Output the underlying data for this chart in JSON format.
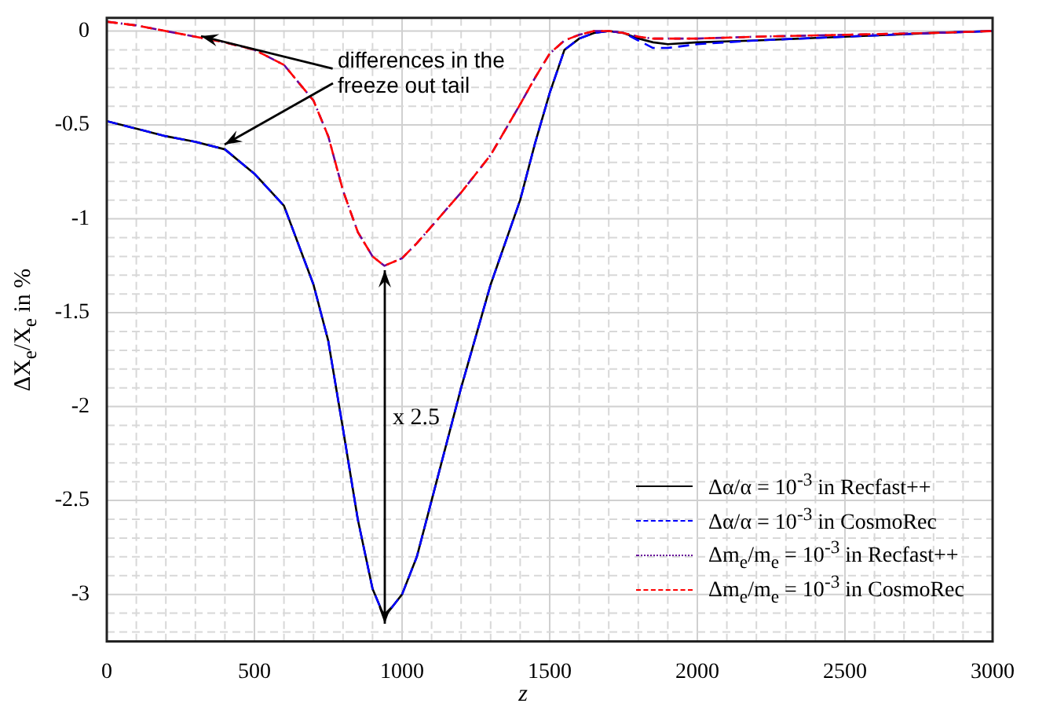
{
  "chart_data": {
    "type": "line",
    "xlabel": "z",
    "ylabel": "ΔX$_{e}$/X$_{e}$ in  %",
    "x": [
      0,
      100,
      200,
      300,
      400,
      500,
      600,
      700,
      750,
      800,
      850,
      900,
      940,
      1000,
      1050,
      1100,
      1200,
      1300,
      1400,
      1450,
      1500,
      1550,
      1600,
      1650,
      1700,
      1750,
      1800,
      1850,
      1900,
      2000,
      2200,
      2500,
      2800,
      3000
    ],
    "series": [
      {
        "name": "Δα/α = 10$^{-3}$ in Recfast++",
        "color": "#000000",
        "line_style": "solid",
        "values": [
          -0.48,
          -0.52,
          -0.56,
          -0.59,
          -0.63,
          -0.76,
          -0.93,
          -1.35,
          -1.65,
          -2.12,
          -2.6,
          -2.97,
          -3.12,
          -3.0,
          -2.8,
          -2.5,
          -1.9,
          -1.35,
          -0.9,
          -0.6,
          -0.33,
          -0.1,
          -0.04,
          -0.01,
          0,
          -0.01,
          -0.04,
          -0.06,
          -0.07,
          -0.06,
          -0.05,
          -0.03,
          -0.01,
          0
        ]
      },
      {
        "name": "Δα/α = 10$^{-3}$ in CosmoRec",
        "color": "#0000ff",
        "line_style": "dashed",
        "values": [
          -0.48,
          -0.52,
          -0.56,
          -0.59,
          -0.63,
          -0.76,
          -0.93,
          -1.35,
          -1.65,
          -2.12,
          -2.6,
          -2.97,
          -3.12,
          -3.0,
          -2.8,
          -2.5,
          -1.9,
          -1.35,
          -0.9,
          -0.6,
          -0.33,
          -0.1,
          -0.04,
          -0.01,
          0,
          -0.01,
          -0.05,
          -0.09,
          -0.09,
          -0.07,
          -0.05,
          -0.03,
          -0.01,
          0
        ]
      },
      {
        "name": "Δm$_{e}$/m$_{e}$ = 10$^{-3}$ in Recfast++",
        "color": "#660099",
        "line_style": "dotted",
        "values": [
          0.05,
          0.03,
          0.0,
          -0.03,
          -0.06,
          -0.1,
          -0.18,
          -0.37,
          -0.56,
          -0.85,
          -1.07,
          -1.2,
          -1.25,
          -1.21,
          -1.13,
          -1.04,
          -0.86,
          -0.66,
          -0.39,
          -0.25,
          -0.12,
          -0.05,
          -0.02,
          0,
          0,
          -0.01,
          -0.03,
          -0.04,
          -0.04,
          -0.04,
          -0.03,
          -0.02,
          -0.01,
          0
        ]
      },
      {
        "name": "Δm$_{e}$/m$_{e}$ = 10$^{-3}$ in CosmoRec",
        "color": "#ff0000",
        "line_style": "dashed",
        "values": [
          0.05,
          0.03,
          0.0,
          -0.03,
          -0.06,
          -0.1,
          -0.18,
          -0.37,
          -0.56,
          -0.85,
          -1.07,
          -1.2,
          -1.25,
          -1.21,
          -1.13,
          -1.04,
          -0.86,
          -0.66,
          -0.39,
          -0.25,
          -0.12,
          -0.05,
          -0.02,
          0,
          0,
          -0.01,
          -0.03,
          -0.04,
          -0.04,
          -0.04,
          -0.03,
          -0.02,
          -0.01,
          0
        ]
      }
    ],
    "xlim": [
      0,
      3000
    ],
    "xticks": [
      0,
      {
        "value": 100,
        "label": null
      },
      {
        "value": 200,
        "label": null
      },
      {
        "value": 300,
        "label": null
      },
      {
        "value": 400,
        "label": null
      },
      500,
      {
        "value": 600,
        "label": null
      },
      {
        "value": 700,
        "label": null
      },
      {
        "value": 800,
        "label": null
      },
      {
        "value": 900,
        "label": null
      },
      1000,
      {
        "value": 1100,
        "label": null
      },
      {
        "value": 1200,
        "label": null
      },
      {
        "value": 1300,
        "label": null
      },
      {
        "value": 1400,
        "label": null
      },
      1500,
      {
        "value": 1600,
        "label": null
      },
      {
        "value": 1700,
        "label": null
      },
      {
        "value": 1800,
        "label": null
      },
      {
        "value": 1900,
        "label": null
      },
      2000,
      {
        "value": 2100,
        "label": null
      },
      {
        "value": 2200,
        "label": null
      },
      {
        "value": 2300,
        "label": null
      },
      {
        "value": 2400,
        "label": null
      },
      2500,
      {
        "value": 2600,
        "label": null
      },
      {
        "value": 2700,
        "label": null
      },
      {
        "value": 2800,
        "label": null
      },
      {
        "value": 2900,
        "label": null
      },
      3000
    ],
    "ylim": [
      -3.25,
      0.07
    ],
    "yticks": [
      {
        "value": -3.2,
        "label": null
      },
      {
        "value": -3.1,
        "label": null
      },
      -3,
      {
        "value": -2.9,
        "label": null
      },
      {
        "value": -2.8,
        "label": null
      },
      {
        "value": -2.7,
        "label": null
      },
      {
        "value": -2.6,
        "label": null
      },
      -2.5,
      {
        "value": -2.4,
        "label": null
      },
      {
        "value": -2.3,
        "label": null
      },
      {
        "value": -2.2,
        "label": null
      },
      {
        "value": -2.1,
        "label": null
      },
      -2,
      {
        "value": -1.9,
        "label": null
      },
      {
        "value": -1.8,
        "label": null
      },
      {
        "value": -1.7,
        "label": null
      },
      {
        "value": -1.6,
        "label": null
      },
      -1.5,
      {
        "value": -1.4,
        "label": null
      },
      {
        "value": -1.3,
        "label": null
      },
      {
        "value": -1.2,
        "label": null
      },
      {
        "value": -1.1,
        "label": null
      },
      -1,
      {
        "value": -0.9,
        "label": null
      },
      {
        "value": -0.8,
        "label": null
      },
      {
        "value": -0.7,
        "label": null
      },
      {
        "value": -0.6,
        "label": null
      },
      -0.5,
      {
        "value": -0.4,
        "label": null
      },
      {
        "value": -0.3,
        "label": null
      },
      {
        "value": -0.2,
        "label": null
      },
      {
        "value": -0.1,
        "label": null
      },
      0
    ],
    "grid": true,
    "legend": "bottom right",
    "marker": "none",
    "annotations": [
      {
        "text": "differences in the freeze out tail",
        "x": 320,
        "y": -0.03
      },
      "x 2.5"
    ]
  }
}
